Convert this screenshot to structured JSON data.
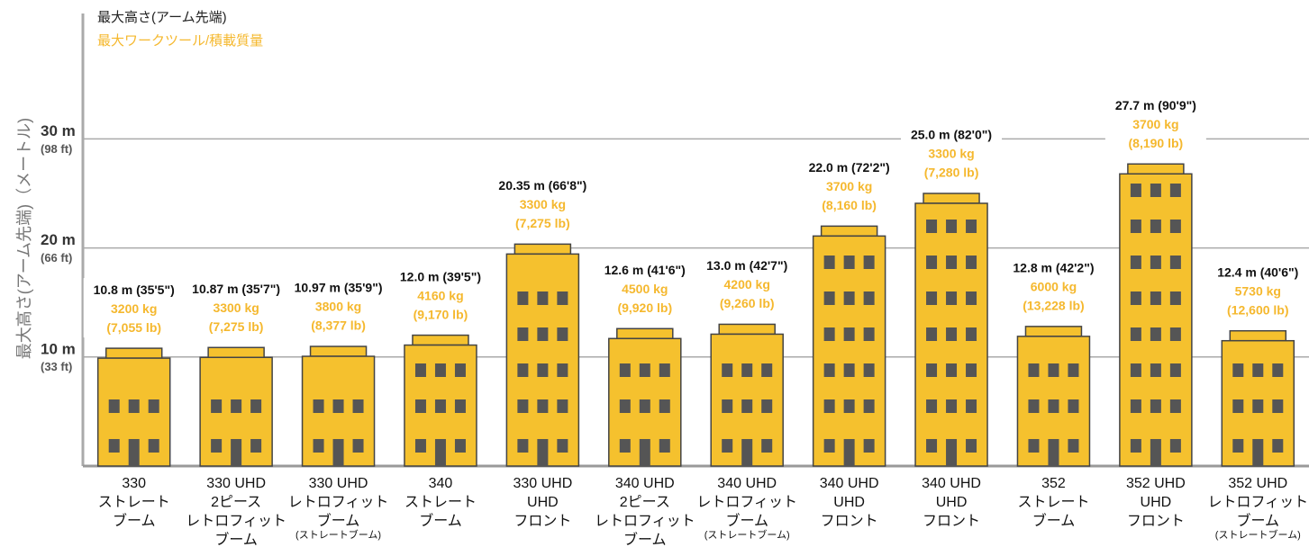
{
  "chart_data": {
    "type": "bar",
    "y_label": "最大高さ(アーム先端)（メートル)",
    "categories": [
      [
        "330",
        "ストレート",
        "ブーム"
      ],
      [
        "330 UHD",
        "2ピース",
        "レトロフィット",
        "ブーム"
      ],
      [
        "330 UHD",
        "レトロフィット",
        "ブーム"
      ],
      [
        "340",
        "ストレート",
        "ブーム"
      ],
      [
        "330 UHD",
        "UHD",
        "フロント"
      ],
      [
        "340 UHD",
        "2ピース",
        "レトロフィット",
        "ブーム"
      ],
      [
        "340 UHD",
        "レトロフィット",
        "ブーム"
      ],
      [
        "340 UHD",
        "UHD",
        "フロント"
      ],
      [
        "340 UHD",
        "UHD",
        "フロント"
      ],
      [
        "352",
        "ストレート",
        "ブーム"
      ],
      [
        "352 UHD",
        "UHD",
        "フロント"
      ],
      [
        "352 UHD",
        "レトロフィット",
        "ブーム"
      ]
    ],
    "category_notes": [
      null,
      null,
      "(ストレートブーム)",
      null,
      null,
      null,
      "(ストレートブーム)",
      null,
      null,
      null,
      null,
      "(ストレートブーム)"
    ],
    "series": [
      {
        "name": "最大高さ(アーム先端)",
        "color": "#f5c12e",
        "values": [
          10.8,
          10.87,
          10.97,
          12.0,
          20.35,
          12.6,
          13.0,
          22.0,
          25.0,
          12.8,
          27.7,
          12.4
        ],
        "value_labels": [
          "10.8 m (35'5\")",
          "10.87 m (35'7\")",
          "10.97 m (35'9\")",
          "12.0 m (39'5\")",
          "20.35 m (66'8\")",
          "12.6 m (41'6\")",
          "13.0 m (42'7\")",
          "22.0 m (72'2\")",
          "25.0 m (82'0\")",
          "12.8 m (42'2\")",
          "27.7 m (90'9\")",
          "12.4 m (40'6\")"
        ]
      },
      {
        "name": "最大ワークツール/積載質量",
        "color": "#f5b82e",
        "values": [
          3200,
          3300,
          3800,
          4160,
          3300,
          4500,
          4200,
          3700,
          3300,
          6000,
          3700,
          5730
        ],
        "value_labels": [
          "3200 kg",
          "3300 kg",
          "3800 kg",
          "4160 kg",
          "3300 kg",
          "4500 kg",
          "4200 kg",
          "3700 kg",
          "3300 kg",
          "6000 kg",
          "3700 kg",
          "5730 kg"
        ],
        "secondary_labels": [
          "(7,055 lb)",
          "(7,275 lb)",
          "(8,377 lb)",
          "(9,170 lb)",
          "(7,275 lb)",
          "(9,920 lb)",
          "(9,260 lb)",
          "(8,160 lb)",
          "(7,280 lb)",
          "(13,228 lb)",
          "(8,190 lb)",
          "(12,600 lb)"
        ]
      }
    ],
    "ylim": [
      0,
      41.5
    ],
    "yticks": [
      {
        "value": 10,
        "label": "10 m"
      },
      {
        "value": 20,
        "label": "20 m"
      },
      {
        "value": 30,
        "label": "30 m"
      }
    ],
    "ytick_sublabels": [
      "(33 ft)",
      "(66 ft)",
      "(98 ft)"
    ],
    "grid": true
  }
}
